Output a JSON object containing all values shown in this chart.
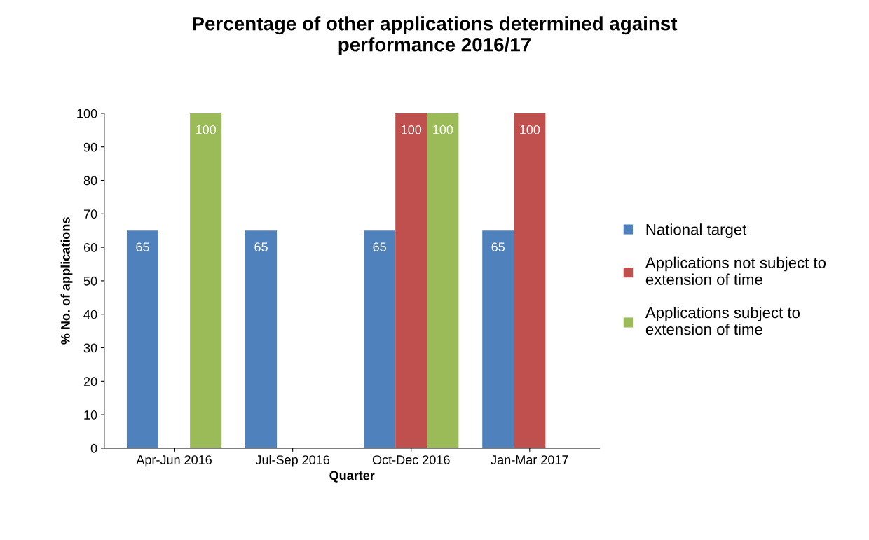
{
  "chart_data": {
    "type": "bar",
    "title": "Percentage of other applications determined against\nperformance 2016/17",
    "xlabel": "Quarter",
    "ylabel": "% No. of applications",
    "categories": [
      "Apr-Jun 2016",
      "Jul-Sep 2016",
      "Oct-Dec 2016",
      "Jan-Mar 2017"
    ],
    "series": [
      {
        "name": "National target",
        "color": "#4f81bd",
        "values": [
          65,
          65,
          65,
          65
        ],
        "value_labels": [
          "65",
          "65",
          "65",
          "65"
        ]
      },
      {
        "name": "Applications not subject to\nextension of time",
        "color": "#c0504d",
        "values": [
          0,
          0,
          100,
          100
        ],
        "value_labels": [
          null,
          null,
          "100",
          "100"
        ]
      },
      {
        "name": "Applications subject to\nextension of time",
        "color": "#9bbb59",
        "values": [
          100,
          0,
          100,
          0
        ],
        "value_labels": [
          "100",
          null,
          "100",
          null
        ]
      }
    ],
    "ylim": [
      0,
      100
    ],
    "yticks": [
      0,
      10,
      20,
      30,
      40,
      50,
      60,
      70,
      80,
      90,
      100
    ],
    "grid": false,
    "legend": "right"
  }
}
